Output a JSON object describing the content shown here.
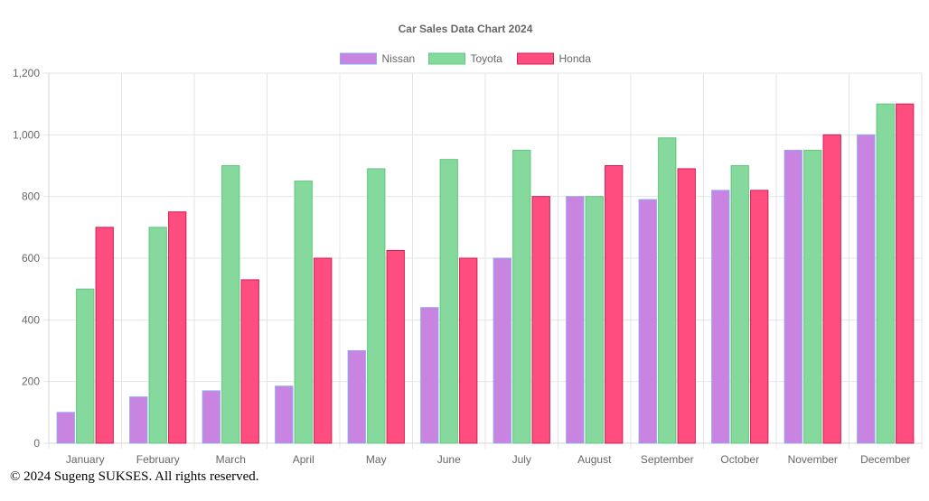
{
  "chart_data": {
    "type": "bar",
    "title": "Car Sales Data Chart 2024",
    "categories": [
      "January",
      "February",
      "March",
      "April",
      "May",
      "June",
      "July",
      "August",
      "September",
      "October",
      "November",
      "December"
    ],
    "series": [
      {
        "name": "Nissan",
        "values": [
          100,
          150,
          170,
          185,
          300,
          440,
          600,
          800,
          790,
          820,
          950,
          1000
        ],
        "fill": "#c983e0",
        "stroke": "#8ea9f0"
      },
      {
        "name": "Toyota",
        "values": [
          500,
          700,
          900,
          850,
          890,
          920,
          950,
          800,
          990,
          900,
          950,
          1100
        ],
        "fill": "#86d99d",
        "stroke": "#62c77f"
      },
      {
        "name": "Honda",
        "values": [
          700,
          750,
          530,
          600,
          625,
          600,
          800,
          900,
          890,
          820,
          1000,
          1100
        ],
        "fill": "#ff4d7f",
        "stroke": "#d11e55"
      }
    ],
    "ylim": [
      0,
      1200
    ],
    "yticks": [
      "0",
      "200",
      "400",
      "600",
      "800",
      "1,000",
      "1,200"
    ],
    "ytick_values": [
      0,
      200,
      400,
      600,
      800,
      1000,
      1200
    ],
    "grid": true,
    "legend_position": "top"
  },
  "footer": {
    "text": "© 2024 Sugeng SUKSES. All rights reserved."
  }
}
